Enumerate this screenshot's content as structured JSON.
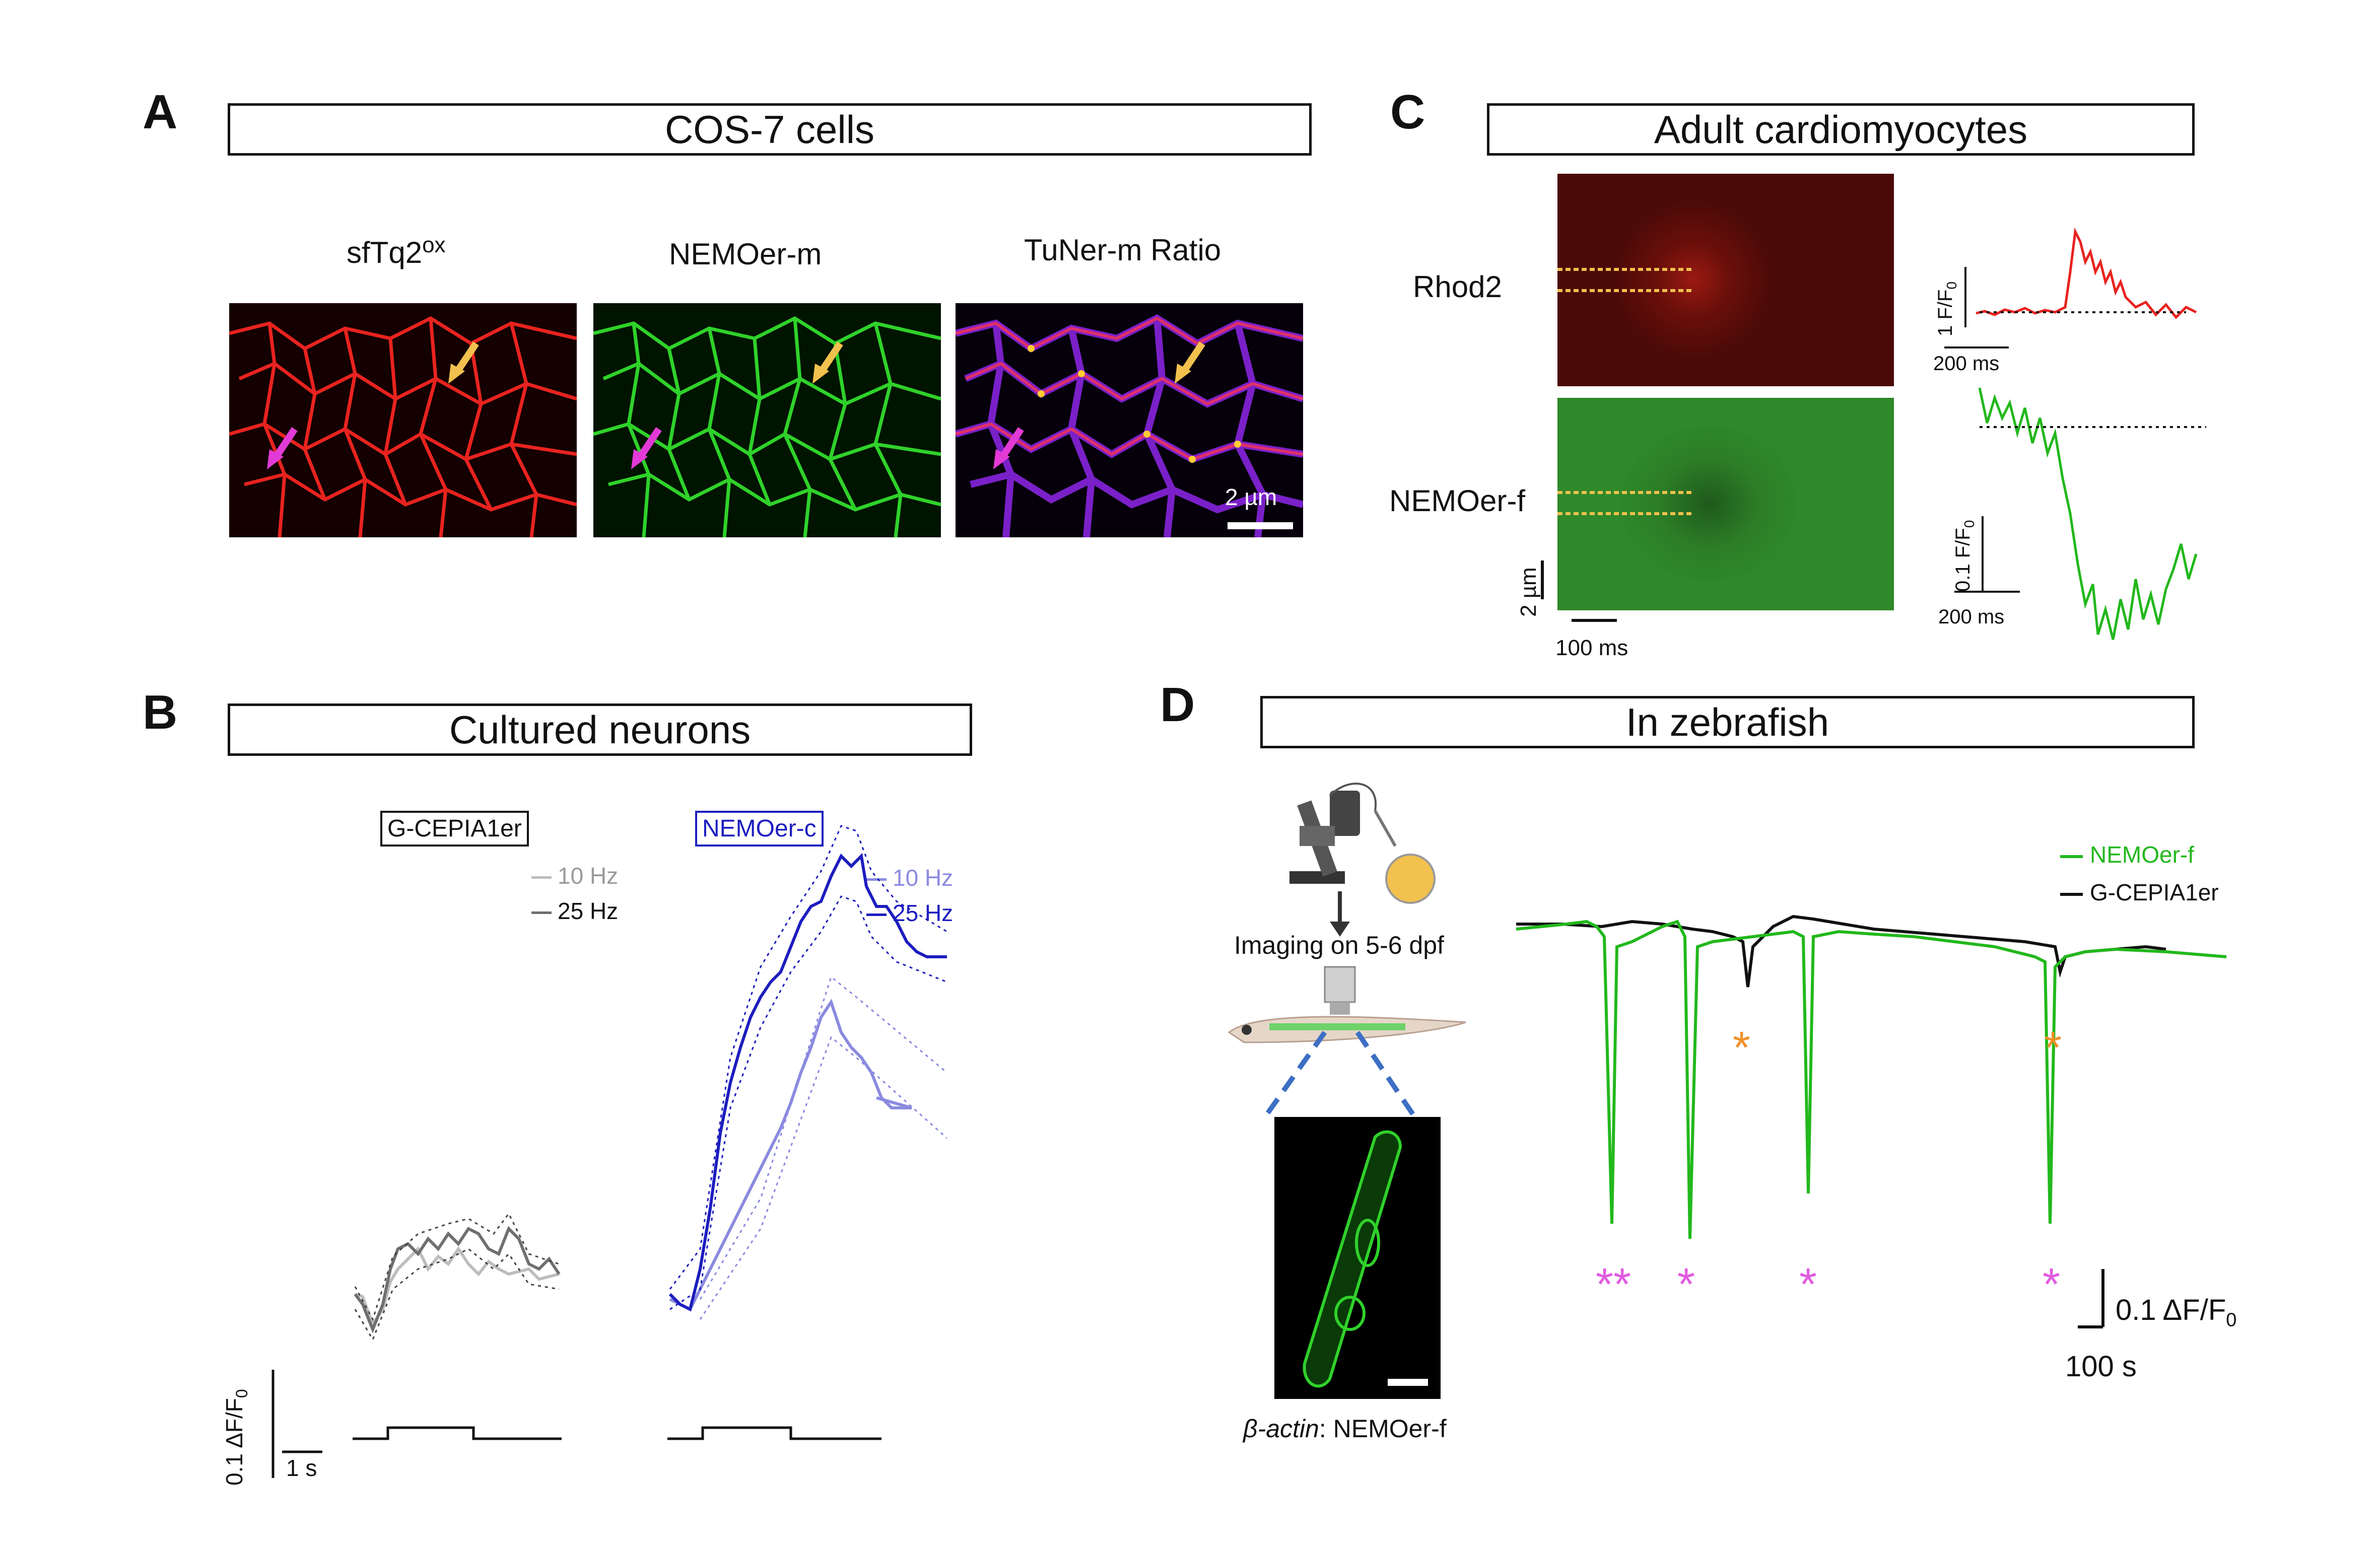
{
  "panels": {
    "A": {
      "letter": "A",
      "title": "COS-7 cells",
      "images": [
        {
          "label": "sfTq2",
          "sup": "ox",
          "channel_color": "#e8231f"
        },
        {
          "label": "NEMOer-m",
          "sup": "",
          "channel_color": "#2fd22a"
        },
        {
          "label": "TuNer-m Ratio",
          "sup": "",
          "channel_color": "#7a20c8"
        }
      ],
      "scale_bar": "2 µm"
    },
    "B": {
      "letter": "B",
      "title": "Cultured neurons",
      "sensors": [
        "G-CEPIA1er",
        "NEMOer-c"
      ],
      "legend_left": [
        "10 Hz",
        "25 Hz"
      ],
      "legend_right": [
        "10 Hz",
        "25 Hz"
      ],
      "y_scale": "0.1 ΔF/F",
      "y_scale_sub": "0",
      "x_scale": "1 s"
    },
    "C": {
      "letter": "C",
      "title": "Adult cardiomyocytes",
      "rows": [
        "Rhod2",
        "NEMOer-f"
      ],
      "y_scale_image": "2 µm",
      "x_scale_image": "100 ms",
      "trace_top_y": "1 F/F",
      "trace_top_y_sub": "0",
      "trace_top_x": "200 ms",
      "trace_bottom_y": "0.1 F/F",
      "trace_bottom_y_sub": "0",
      "trace_bottom_x": "200 ms"
    },
    "D": {
      "letter": "D",
      "title": "In zebrafish",
      "imaging_label": "Imaging on 5-6 dpf",
      "caption_italic": "β-actin",
      "caption_rest": ": NEMOer-f",
      "legend": [
        "NEMOer-f",
        "G-CEPIA1er"
      ],
      "y_scale": "0.1 ΔF/F",
      "y_scale_sub": "0",
      "x_scale": "100 s",
      "marker": "*"
    }
  },
  "colors": {
    "red": "#e8231f",
    "green": "#22b81c",
    "dark_blue": "#1d1dbf",
    "light_blue": "#8a8ae0",
    "dark_gray": "#6f6f6f",
    "light_gray": "#bdbdbd",
    "orange": "#f0902a",
    "magenta": "#e05ae0",
    "yellow": "#f2c14e"
  }
}
